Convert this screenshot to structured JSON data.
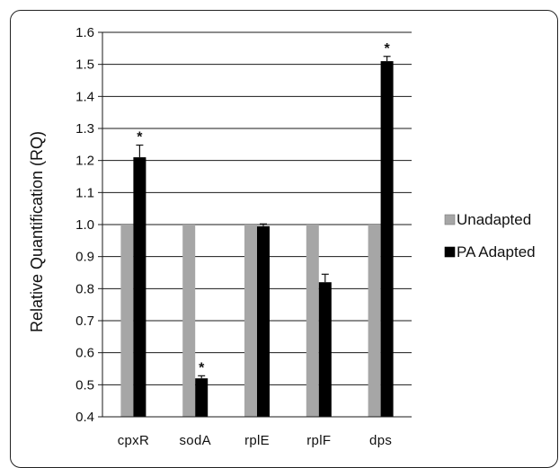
{
  "chart_data": {
    "type": "bar",
    "categories": [
      "cpxR",
      "sodA",
      "rplE",
      "rplF",
      "dps"
    ],
    "series": [
      {
        "name": "Unadapted",
        "values": [
          1.0,
          1.0,
          1.0,
          1.0,
          1.0
        ],
        "errors": [
          0,
          0,
          0,
          0,
          0
        ],
        "color": "#a6a6a6"
      },
      {
        "name": "PA Adapted",
        "values": [
          1.21,
          0.52,
          0.995,
          0.82,
          1.51
        ],
        "errors": [
          0.038,
          0.008,
          0.007,
          0.025,
          0.015
        ],
        "color": "#000000"
      }
    ],
    "significance_marks": [
      "*",
      "*",
      "",
      "",
      "*"
    ],
    "ylabel": "Relative Quantification (RQ)",
    "xlabel": "",
    "ylim": [
      0.4,
      1.6
    ],
    "yticks": [
      "0.4",
      "0.5",
      "0.6",
      "0.7",
      "0.8",
      "0.9",
      "1.0",
      "1.1",
      "1.2",
      "1.3",
      "1.4",
      "1.5",
      "1.6"
    ],
    "grid": true,
    "legend_position": "right"
  }
}
